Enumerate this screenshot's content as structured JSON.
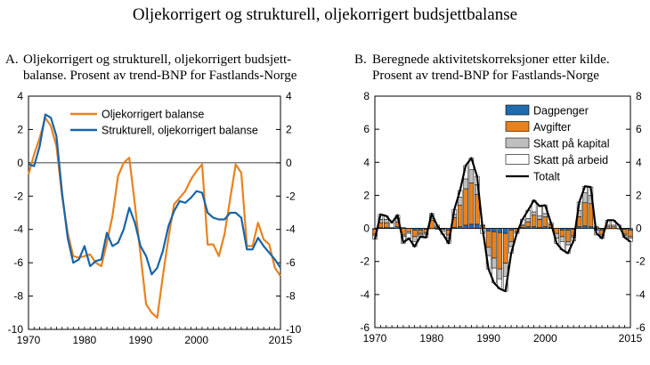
{
  "figure_title": "Oljekorrigert og strukturell, oljekorrigert budsjettbalanse",
  "chart_data": [
    {
      "id": "A",
      "panel_label": "A.",
      "title_line1": "Oljekorrigert og strukturell, oljekorrigert budsjett-",
      "title_line2": "balanse. Prosent av trend-BNP for Fastlands-Norge",
      "type": "line",
      "xlim": [
        1970,
        2015
      ],
      "ylim": [
        -10,
        4
      ],
      "y_ticks": [
        4,
        2,
        0,
        -2,
        -4,
        -6,
        -8,
        -10
      ],
      "y_tick_labels_left": [
        "4",
        "2",
        "0",
        "-2",
        "-4",
        "-6",
        "-8",
        "-10"
      ],
      "y_tick_labels_right": [
        "4",
        "2",
        "0",
        "-2",
        "-4",
        "-6",
        "-8",
        "-10"
      ],
      "x_ticks": [
        1970,
        1980,
        1990,
        2000,
        2015
      ],
      "x_tick_labels": [
        "1970",
        "1980",
        "1990",
        "2000",
        "2015"
      ],
      "x": [
        1970,
        1971,
        1972,
        1973,
        1974,
        1975,
        1976,
        1977,
        1978,
        1979,
        1980,
        1981,
        1982,
        1983,
        1984,
        1985,
        1986,
        1987,
        1988,
        1989,
        1990,
        1991,
        1992,
        1993,
        1994,
        1995,
        1996,
        1997,
        1998,
        1999,
        2000,
        2001,
        2002,
        2003,
        2004,
        2005,
        2006,
        2007,
        2008,
        2009,
        2010,
        2011,
        2012,
        2013,
        2014,
        2015
      ],
      "series": [
        {
          "name": "Oljekorrigert balanse",
          "color": "#E8821E",
          "values": [
            -0.7,
            0.5,
            1.5,
            2.7,
            2.2,
            1.0,
            -2.0,
            -4.2,
            -5.6,
            -5.7,
            -5.6,
            -5.5,
            -6.0,
            -6.2,
            -4.8,
            -3.2,
            -0.8,
            0.0,
            0.3,
            -2.5,
            -5.5,
            -8.5,
            -9.0,
            -9.3,
            -6.8,
            -4.5,
            -2.5,
            -2.1,
            -1.7,
            -1.0,
            -0.5,
            -0.1,
            -4.9,
            -4.9,
            -5.6,
            -4.3,
            -2.2,
            -0.1,
            -0.6,
            -5.0,
            -5.0,
            -3.6,
            -4.6,
            -4.9,
            -6.3,
            -6.8
          ]
        },
        {
          "name": "Strukturell, oljekorrigert balanse",
          "color": "#1764AB",
          "values": [
            -0.1,
            -0.2,
            1.0,
            2.9,
            2.7,
            1.6,
            -1.8,
            -4.5,
            -6.0,
            -5.8,
            -5.0,
            -6.2,
            -5.9,
            -5.8,
            -4.2,
            -5.0,
            -4.8,
            -4.0,
            -2.7,
            -3.6,
            -5.0,
            -5.6,
            -6.7,
            -6.3,
            -5.3,
            -3.8,
            -2.9,
            -2.3,
            -2.4,
            -2.1,
            -1.7,
            -1.8,
            -3.0,
            -3.3,
            -3.4,
            -3.4,
            -3.0,
            -3.0,
            -3.3,
            -5.2,
            -5.2,
            -4.5,
            -5.0,
            -5.4,
            -5.8,
            -6.3
          ]
        }
      ],
      "legend": [
        "Oljekorrigert balanse",
        "Strukturell, oljekorrigert balanse"
      ],
      "legend_position": "top-right"
    },
    {
      "id": "B",
      "panel_label": "B.",
      "title_line1": "Beregnede aktivitetskorreksjoner etter kilde.",
      "title_line2": "Prosent av trend-BNP for Fastlands-Norge",
      "type": "bar",
      "stacked": true,
      "xlim": [
        1970,
        2015
      ],
      "ylim": [
        -6,
        8
      ],
      "y_ticks": [
        8,
        6,
        4,
        2,
        0,
        -2,
        -4,
        -6
      ],
      "y_tick_labels_left": [
        "8",
        "6",
        "4",
        "2",
        "0",
        "-2",
        "-4",
        "-6"
      ],
      "y_tick_labels_right": [
        "8",
        "6",
        "4",
        "2",
        "0",
        "-2",
        "-4",
        "-6"
      ],
      "x_ticks": [
        1970,
        1980,
        1990,
        2000,
        2015
      ],
      "x_tick_labels": [
        "1970",
        "1980",
        "1990",
        "2000",
        "2015"
      ],
      "x": [
        1970,
        1971,
        1972,
        1973,
        1974,
        1975,
        1976,
        1977,
        1978,
        1979,
        1980,
        1981,
        1982,
        1983,
        1984,
        1985,
        1986,
        1987,
        1988,
        1989,
        1990,
        1991,
        1992,
        1993,
        1994,
        1995,
        1996,
        1997,
        1998,
        1999,
        2000,
        2001,
        2002,
        2003,
        2004,
        2005,
        2006,
        2007,
        2008,
        2009,
        2010,
        2011,
        2012,
        2013,
        2014,
        2015
      ],
      "series": [
        {
          "name": "Dagpenger",
          "color": "#1F6BB0",
          "values": [
            -0.05,
            0.05,
            0.05,
            0.05,
            0.1,
            0.05,
            0.0,
            -0.1,
            -0.1,
            -0.05,
            0.0,
            -0.05,
            -0.05,
            -0.1,
            0.05,
            0.1,
            0.2,
            0.25,
            0.25,
            0.0,
            -0.15,
            -0.2,
            -0.25,
            -0.3,
            -0.1,
            0.0,
            0.05,
            0.1,
            0.1,
            0.05,
            0.1,
            0.05,
            0.0,
            -0.1,
            -0.1,
            -0.05,
            0.1,
            0.15,
            0.1,
            -0.1,
            -0.1,
            0.0,
            0.0,
            0.0,
            -0.05,
            -0.1
          ]
        },
        {
          "name": "Avgifter",
          "color": "#E8821E",
          "values": [
            -0.3,
            0.3,
            0.3,
            0.0,
            0.3,
            -0.4,
            -0.2,
            -0.4,
            -0.2,
            -0.2,
            0.5,
            0.1,
            0.0,
            -0.3,
            0.6,
            1.3,
            2.2,
            2.5,
            1.8,
            0.2,
            -1.0,
            -1.6,
            -2.2,
            -1.8,
            -0.7,
            -0.2,
            0.1,
            0.3,
            0.7,
            0.5,
            0.6,
            0.2,
            -0.3,
            -0.4,
            -0.7,
            -0.4,
            0.6,
            1.4,
            1.4,
            0.1,
            -0.3,
            0.1,
            0.1,
            0.0,
            -0.3,
            -0.4
          ]
        },
        {
          "name": "Skatt på kapital",
          "color": "#BFBFBF",
          "values": [
            -0.1,
            0.2,
            0.2,
            0.0,
            0.2,
            -0.1,
            -0.1,
            -0.3,
            -0.1,
            -0.1,
            0.1,
            0.0,
            -0.1,
            -0.2,
            0.2,
            0.5,
            0.6,
            0.8,
            0.6,
            0.0,
            -0.5,
            -0.6,
            -0.6,
            -0.8,
            -0.3,
            -0.1,
            0.1,
            0.2,
            0.2,
            0.2,
            0.2,
            0.0,
            -0.3,
            -0.3,
            -0.2,
            -0.1,
            0.4,
            0.6,
            0.5,
            0.0,
            0.0,
            0.1,
            0.1,
            0.0,
            -0.1,
            -0.1
          ]
        },
        {
          "name": "Skatt på arbeid",
          "color": "#FFFFFF",
          "values": [
            -0.2,
            0.3,
            0.2,
            0.3,
            0.2,
            -0.4,
            -0.3,
            -0.3,
            -0.1,
            -0.2,
            0.3,
            0.1,
            -0.2,
            -0.3,
            0.3,
            0.4,
            0.8,
            0.7,
            0.5,
            -0.3,
            -0.8,
            -0.9,
            -0.6,
            -0.9,
            -0.4,
            0.0,
            0.3,
            0.5,
            0.7,
            0.6,
            0.5,
            0.1,
            -0.3,
            -0.5,
            -0.5,
            -0.2,
            0.5,
            0.4,
            0.5,
            -0.3,
            -0.2,
            0.3,
            0.3,
            0.2,
            -0.1,
            -0.2
          ]
        }
      ],
      "total": {
        "name": "Totalt",
        "color": "#000000",
        "values": [
          -0.65,
          0.85,
          0.75,
          0.35,
          0.8,
          -0.85,
          -0.6,
          -1.1,
          -0.5,
          -0.55,
          0.9,
          0.15,
          -0.35,
          -0.9,
          1.15,
          2.3,
          3.8,
          4.25,
          3.15,
          -0.1,
          -2.45,
          -3.3,
          -3.65,
          -3.8,
          -1.5,
          -0.3,
          0.55,
          1.1,
          1.7,
          1.35,
          1.4,
          0.35,
          -0.9,
          -1.3,
          -1.5,
          -0.75,
          1.6,
          2.55,
          2.5,
          -0.3,
          -0.6,
          0.5,
          0.5,
          0.2,
          -0.55,
          -0.8
        ]
      },
      "legend": [
        "Dagpenger",
        "Avgifter",
        "Skatt på kapital",
        "Skatt på arbeid",
        "Totalt"
      ],
      "legend_position": "top-right"
    }
  ]
}
